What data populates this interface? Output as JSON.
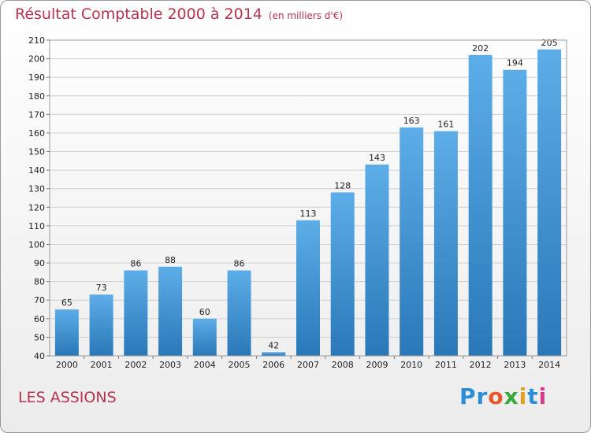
{
  "header": {
    "title": "Résultat Comptable 2000 à 2014",
    "subtitle": "(en milliers d'€)"
  },
  "footer": {
    "place": "LES ASSIONS",
    "logo": "Proxiti"
  },
  "colors": {
    "title": "#b5344f",
    "bar_top": "#5dade8",
    "bar_bottom": "#2a78b8",
    "grid": "#d0d0d0"
  },
  "chart_data": {
    "type": "bar",
    "title": "Résultat Comptable 2000 à 2014",
    "subtitle": "(en milliers d'€)",
    "categories": [
      "2000",
      "2001",
      "2002",
      "2003",
      "2004",
      "2005",
      "2006",
      "2007",
      "2008",
      "2009",
      "2010",
      "2011",
      "2012",
      "2013",
      "2014"
    ],
    "values": [
      65,
      73,
      86,
      88,
      60,
      86,
      42,
      113,
      128,
      143,
      163,
      161,
      202,
      194,
      205
    ],
    "ylim": [
      40,
      210
    ],
    "yticks": [
      40,
      50,
      60,
      70,
      80,
      90,
      100,
      110,
      120,
      130,
      140,
      150,
      160,
      170,
      180,
      190,
      200,
      210
    ],
    "grid": true,
    "xlabel": "",
    "ylabel": ""
  }
}
